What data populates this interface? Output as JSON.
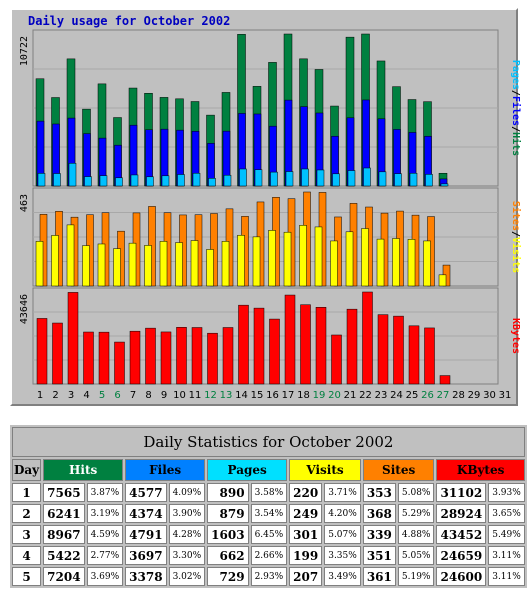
{
  "chart_data": [
    {
      "type": "bar",
      "title": "Daily usage for October 2002",
      "categories": [
        "1",
        "2",
        "3",
        "4",
        "5",
        "6",
        "7",
        "8",
        "9",
        "10",
        "11",
        "12",
        "13",
        "14",
        "15",
        "16",
        "17",
        "18",
        "19",
        "20",
        "21",
        "22",
        "23",
        "24",
        "25",
        "26",
        "27",
        "28",
        "29",
        "30",
        "31"
      ],
      "weekend_days": [
        5,
        6,
        12,
        13,
        19,
        20,
        26,
        27
      ],
      "max_label": "10722",
      "ylim": [
        0,
        10722
      ],
      "series_labels": [
        "Pages",
        "Files",
        "Hits"
      ],
      "series": [
        {
          "name": "Hits",
          "color": "#008040",
          "values": [
            7565,
            6241,
            8967,
            5422,
            7204,
            4830,
            6910,
            6540,
            6250,
            6150,
            5960,
            5000,
            6600,
            10700,
            7030,
            8720,
            10722,
            8970,
            8220,
            5640,
            10500,
            10722,
            8820,
            7010,
            6100,
            5950,
            900,
            0,
            0,
            0,
            0
          ]
        },
        {
          "name": "Files",
          "color": "#0000ff",
          "values": [
            4577,
            4374,
            4791,
            3697,
            3378,
            2880,
            4290,
            3970,
            4010,
            3940,
            3860,
            3010,
            3870,
            5120,
            5080,
            4220,
            6060,
            5600,
            5150,
            3510,
            4810,
            6070,
            4740,
            3990,
            3780,
            3510,
            500,
            0,
            0,
            0,
            0
          ]
        },
        {
          "name": "Pages",
          "color": "#00c0ff",
          "values": [
            890,
            879,
            1603,
            662,
            729,
            580,
            780,
            650,
            720,
            810,
            900,
            540,
            760,
            1200,
            1150,
            980,
            1020,
            1200,
            1130,
            860,
            1090,
            1270,
            1000,
            870,
            900,
            820,
            150,
            0,
            0,
            0,
            0
          ]
        }
      ]
    },
    {
      "type": "bar",
      "categories": [
        "1",
        "2",
        "3",
        "4",
        "5",
        "6",
        "7",
        "8",
        "9",
        "10",
        "11",
        "12",
        "13",
        "14",
        "15",
        "16",
        "17",
        "18",
        "19",
        "20",
        "21",
        "22",
        "23",
        "24",
        "25",
        "26",
        "27",
        "28",
        "29",
        "30",
        "31"
      ],
      "max_label": "463",
      "ylim": [
        0,
        463
      ],
      "series_labels": [
        "Sites",
        "Visits"
      ],
      "series": [
        {
          "name": "Sites",
          "color": "#ff8000",
          "values": [
            353,
            368,
            339,
            351,
            361,
            270,
            360,
            392,
            361,
            350,
            351,
            357,
            380,
            343,
            414,
            437,
            430,
            463,
            461,
            340,
            407,
            389,
            359,
            369,
            349,
            342,
            103,
            0,
            0,
            0,
            0
          ]
        },
        {
          "name": "Visits",
          "color": "#ffff00",
          "values": [
            220,
            249,
            301,
            199,
            207,
            184,
            211,
            200,
            220,
            214,
            224,
            180,
            220,
            250,
            242,
            274,
            265,
            299,
            291,
            222,
            267,
            283,
            231,
            234,
            230,
            222,
            55,
            0,
            0,
            0,
            0
          ]
        }
      ]
    },
    {
      "type": "bar",
      "categories": [
        "1",
        "2",
        "3",
        "4",
        "5",
        "6",
        "7",
        "8",
        "9",
        "10",
        "11",
        "12",
        "13",
        "14",
        "15",
        "16",
        "17",
        "18",
        "19",
        "20",
        "21",
        "22",
        "23",
        "24",
        "25",
        "26",
        "27",
        "28",
        "29",
        "30",
        "31"
      ],
      "max_label": "43646",
      "ylim": [
        0,
        43646
      ],
      "series_labels": [
        "KBytes"
      ],
      "series": [
        {
          "name": "KBytes",
          "color": "#ff0000",
          "values": [
            31102,
            28924,
            43452,
            24659,
            24600,
            19900,
            25050,
            26500,
            24700,
            26900,
            26800,
            24100,
            26800,
            37400,
            36000,
            30800,
            42200,
            37600,
            36400,
            23250,
            35500,
            43646,
            32900,
            32200,
            27600,
            26600,
            4000,
            0,
            0,
            0,
            0
          ]
        }
      ]
    }
  ],
  "stats_table": {
    "title": "Daily Statistics for October 2002",
    "columns": [
      {
        "label": "Day",
        "color": "#c0c0c0"
      },
      {
        "label": "Hits",
        "color": "#008040"
      },
      {
        "label": "Files",
        "color": "#0080ff"
      },
      {
        "label": "Pages",
        "color": "#00e0ff"
      },
      {
        "label": "Visits",
        "color": "#ffff00"
      },
      {
        "label": "Sites",
        "color": "#ff8000"
      },
      {
        "label": "KBytes",
        "color": "#ff0000"
      }
    ],
    "rows": [
      {
        "day": "1",
        "hits": "7565",
        "hits_pct": "3.87%",
        "files": "4577",
        "files_pct": "4.09%",
        "pages": "890",
        "pages_pct": "3.58%",
        "visits": "220",
        "visits_pct": "3.71%",
        "sites": "353",
        "sites_pct": "5.08%",
        "kbytes": "31102",
        "kbytes_pct": "3.93%"
      },
      {
        "day": "2",
        "hits": "6241",
        "hits_pct": "3.19%",
        "files": "4374",
        "files_pct": "3.90%",
        "pages": "879",
        "pages_pct": "3.54%",
        "visits": "249",
        "visits_pct": "4.20%",
        "sites": "368",
        "sites_pct": "5.29%",
        "kbytes": "28924",
        "kbytes_pct": "3.65%"
      },
      {
        "day": "3",
        "hits": "8967",
        "hits_pct": "4.59%",
        "files": "4791",
        "files_pct": "4.28%",
        "pages": "1603",
        "pages_pct": "6.45%",
        "visits": "301",
        "visits_pct": "5.07%",
        "sites": "339",
        "sites_pct": "4.88%",
        "kbytes": "43452",
        "kbytes_pct": "5.49%"
      },
      {
        "day": "4",
        "hits": "5422",
        "hits_pct": "2.77%",
        "files": "3697",
        "files_pct": "3.30%",
        "pages": "662",
        "pages_pct": "2.66%",
        "visits": "199",
        "visits_pct": "3.35%",
        "sites": "351",
        "sites_pct": "5.05%",
        "kbytes": "24659",
        "kbytes_pct": "3.11%"
      },
      {
        "day": "5",
        "hits": "7204",
        "hits_pct": "3.69%",
        "files": "3378",
        "files_pct": "3.02%",
        "pages": "729",
        "pages_pct": "2.93%",
        "visits": "207",
        "visits_pct": "3.49%",
        "sites": "361",
        "sites_pct": "5.19%",
        "kbytes": "24600",
        "kbytes_pct": "3.11%"
      }
    ]
  }
}
